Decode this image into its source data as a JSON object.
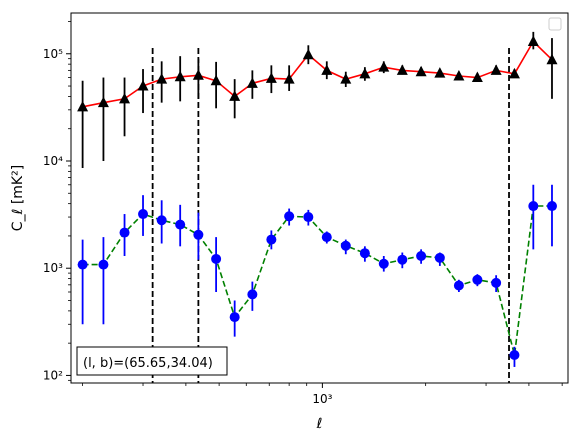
{
  "chart_data": {
    "type": "scatter",
    "xlabel": "ℓ",
    "ylabel": "C_ℓ [mK²]",
    "xscale": "log",
    "yscale": "log",
    "xlim": [
      185,
      5200
    ],
    "ylim": [
      85,
      240000
    ],
    "x_tick_labels": [
      "10³"
    ],
    "y_tick_labels": [
      "10²",
      "10³",
      "10⁴",
      "10⁵"
    ],
    "annotation": "(l, b)=(65.65,34.04)",
    "legend_placement": "top-right",
    "vertical_lines_x": [
      320,
      435,
      3500
    ],
    "series": [
      {
        "marker": "triangle",
        "marker_color": "#000000",
        "line_color": "#ff0000",
        "line_style": "solid",
        "x": [
          200,
          230,
          265,
          300,
          340,
          385,
          435,
          490,
          555,
          625,
          710,
          800,
          910,
          1030,
          1170,
          1330,
          1510,
          1710,
          1940,
          2200,
          2500,
          2830,
          3210,
          3630,
          4120,
          4670
        ],
        "y": [
          32000,
          35000,
          38000,
          50000,
          58000,
          61000,
          63000,
          56000,
          40000,
          53000,
          59000,
          58000,
          98000,
          70000,
          58000,
          65000,
          75000,
          70000,
          68000,
          66000,
          62000,
          60000,
          70000,
          65000,
          130000,
          88000
        ],
        "err_low": [
          8600,
          10000,
          17000,
          28000,
          35000,
          36000,
          38000,
          31000,
          25000,
          38000,
          43000,
          45000,
          80000,
          58000,
          49000,
          56000,
          66000,
          64000,
          62000,
          61000,
          57000,
          55000,
          65000,
          60000,
          110000,
          38000
        ],
        "err_high": [
          56000,
          60000,
          60000,
          72000,
          85000,
          95000,
          90000,
          84000,
          58000,
          70000,
          78000,
          78000,
          120000,
          85000,
          68000,
          75000,
          85000,
          78000,
          75000,
          70000,
          68000,
          66000,
          78000,
          72000,
          160000,
          140000
        ]
      },
      {
        "marker": "circle",
        "marker_color": "#0000ff",
        "line_color": "#008000",
        "line_style": "dashed",
        "x": [
          200,
          230,
          265,
          300,
          340,
          385,
          435,
          490,
          555,
          625,
          710,
          800,
          910,
          1030,
          1170,
          1330,
          1510,
          1710,
          1940,
          2200,
          2500,
          2830,
          3210,
          3630,
          4120,
          4670
        ],
        "y": [
          1080,
          1080,
          2150,
          3200,
          2800,
          2550,
          2050,
          1220,
          350,
          570,
          1850,
          3050,
          3000,
          1950,
          1620,
          1380,
          1100,
          1200,
          1300,
          1250,
          690,
          780,
          730,
          155,
          3800,
          3800
        ],
        "err_low": [
          300,
          300,
          1300,
          2000,
          1700,
          1600,
          1200,
          600,
          230,
          400,
          1500,
          2500,
          2500,
          1700,
          1350,
          1150,
          930,
          1000,
          1100,
          1050,
          600,
          680,
          600,
          120,
          1500,
          1600
        ],
        "err_high": [
          1850,
          1950,
          3200,
          4800,
          4300,
          3900,
          3300,
          1950,
          500,
          750,
          2250,
          3600,
          3500,
          2200,
          1850,
          1600,
          1300,
          1400,
          1500,
          1400,
          780,
          880,
          860,
          185,
          6000,
          6000
        ]
      }
    ]
  }
}
